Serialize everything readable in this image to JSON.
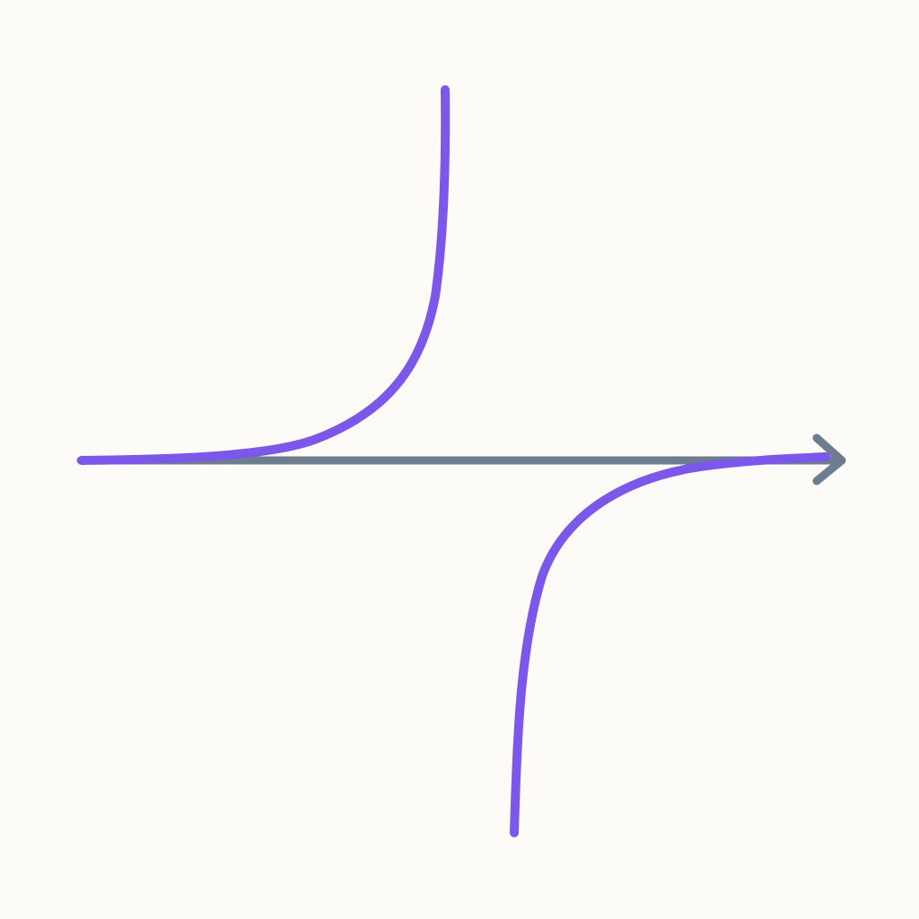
{
  "diagram": {
    "kind": "rational-function-with-vertical-asymptote",
    "asymptote_x": 0,
    "horizontal_asymptote_y": 0,
    "branches": [
      {
        "side": "left",
        "x_range": [
          -5,
          -0.2
        ],
        "y_sign": "positive"
      },
      {
        "side": "right",
        "x_range": [
          0.4,
          5
        ],
        "y_sign": "negative"
      }
    ],
    "colors": {
      "background": "#fdfbf7",
      "curve": "#7b57ea",
      "axis": "#6d7d8f",
      "asymptote_top": "#a3aab4",
      "asymptote_bottom": "#6f7a86"
    },
    "axis": {
      "arrow": "right"
    },
    "asymptote_style": "dashed"
  }
}
